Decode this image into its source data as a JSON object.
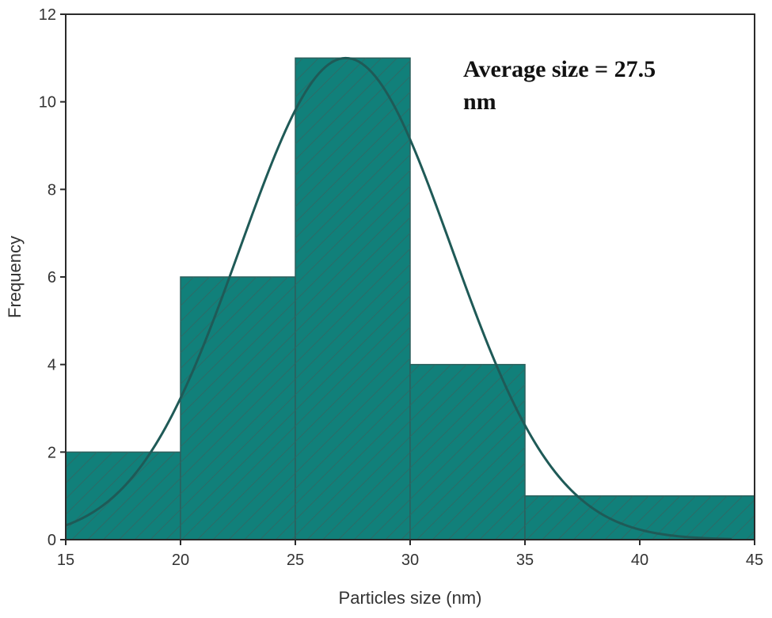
{
  "chart_data": {
    "type": "bar",
    "title": "",
    "xlabel": "Particles size (nm)",
    "ylabel": "Frequency",
    "xlim": [
      15,
      45
    ],
    "ylim": [
      0,
      12
    ],
    "xticks": [
      "15",
      "20",
      "25",
      "30",
      "35",
      "40",
      "45"
    ],
    "yticks": [
      "0",
      "2",
      "4",
      "6",
      "8",
      "10",
      "12"
    ],
    "bins": [
      {
        "from": 15,
        "to": 20,
        "value": 2
      },
      {
        "from": 20,
        "to": 25,
        "value": 6
      },
      {
        "from": 25,
        "to": 30,
        "value": 11
      },
      {
        "from": 30,
        "to": 35,
        "value": 4
      },
      {
        "from": 35,
        "to": 45,
        "value": 1
      }
    ],
    "fit": {
      "type": "gaussian",
      "mean": 27.2,
      "sd": 4.6,
      "peak": 11,
      "range": [
        15,
        44
      ]
    },
    "annotation": [
      "Average size = 27.5",
      "nm"
    ],
    "grid": false,
    "colors": {
      "bar_fill": "#11807a",
      "bar_stroke": "#2d5f5c",
      "hatch": "#2c6b67",
      "curve": "#1f5a57",
      "axis": "#2b2b2b"
    }
  }
}
